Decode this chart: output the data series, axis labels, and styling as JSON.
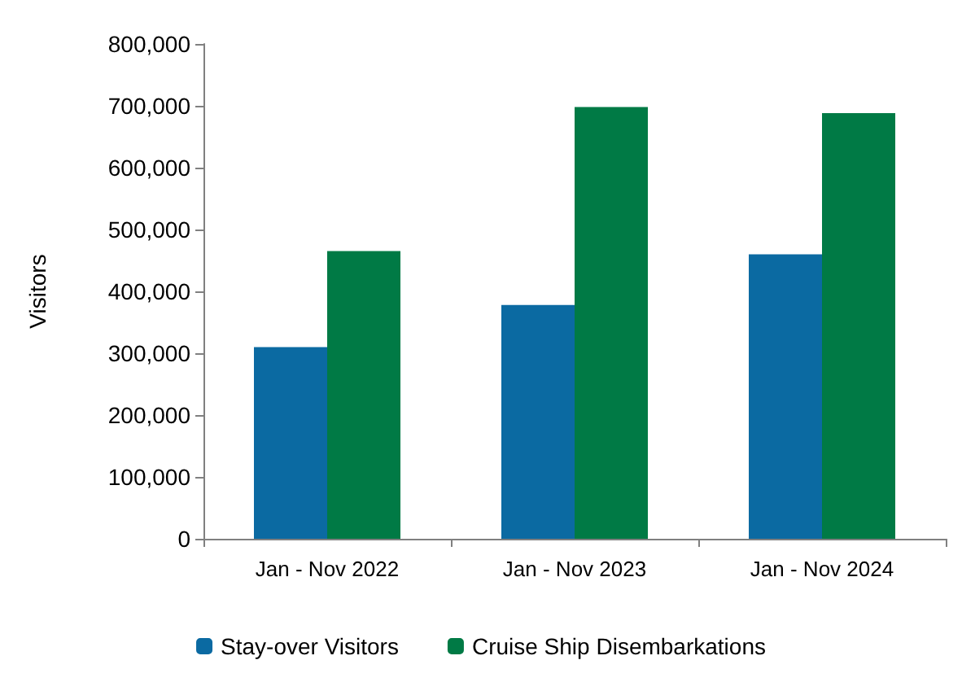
{
  "chart_data": {
    "type": "bar",
    "ylabel": "Visitors",
    "categories": [
      "Jan - Nov 2022",
      "Jan - Nov 2023",
      "Jan - Nov 2024"
    ],
    "series": [
      {
        "name": "Stay-over Visitors",
        "color": "#0b6aa2",
        "values": [
          310000,
          378000,
          460000
        ]
      },
      {
        "name": "Cruise Ship Disembarkations",
        "color": "#007a45",
        "values": [
          465000,
          698000,
          688000
        ]
      }
    ],
    "ylim": [
      0,
      800000
    ],
    "yticks": [
      0,
      {
        "value": 100000,
        "label": "100,000"
      },
      {
        "value": 200000,
        "label": "200,000"
      },
      {
        "value": 300000,
        "label": "300,000"
      },
      {
        "value": 400000,
        "label": "400,000"
      },
      {
        "value": 500000,
        "label": "500,000"
      },
      {
        "value": 600000,
        "label": "600,000"
      },
      {
        "value": 700000,
        "label": "700,000"
      },
      {
        "value": 800000,
        "label": "800,000"
      }
    ],
    "grid": false,
    "legend": "bottom"
  }
}
